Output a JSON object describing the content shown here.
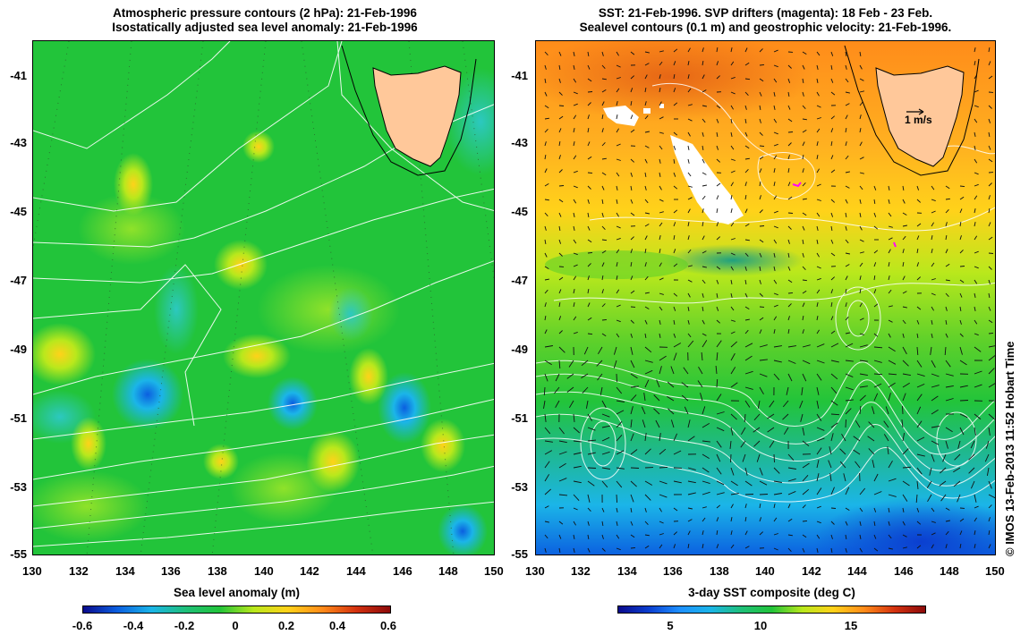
{
  "left": {
    "title_line1": "Atmospheric pressure contours (2 hPa): 21-Feb-1996",
    "title_line2": "Isostatically adjusted sea level anomaly: 21-Feb-1996",
    "colorbar": {
      "label": "Sea level anomaly (m)",
      "ticks": [
        "-0.6",
        "-0.4",
        "-0.2",
        "0",
        "0.2",
        "0.4",
        "0.6"
      ],
      "colors": [
        "#0a0a8c",
        "#0b5fe0",
        "#1bb5e8",
        "#1fc07a",
        "#22c43a",
        "#b9e81c",
        "#ffd21a",
        "#ff8c1a",
        "#d4320f",
        "#8c0a0a"
      ]
    }
  },
  "right": {
    "title_line1": "SST: 21-Feb-1996. SVP drifters (magenta): 18 Feb - 23 Feb.",
    "title_line2": "Sealevel contours (0.1 m) and geostrophic velocity: 21-Feb-1996.",
    "velocity_label": "1 m/s",
    "colorbar": {
      "label": "3-day SST composite (deg C)",
      "ticks": [
        "5",
        "10",
        "15"
      ],
      "colors": [
        "#0a0a8c",
        "#0b3fd0",
        "#1e90ff",
        "#1bb5e8",
        "#1fc07a",
        "#22c43a",
        "#b9e81c",
        "#ffd21a",
        "#ff8c1a",
        "#d4320f",
        "#8c0a0a"
      ]
    }
  },
  "axes": {
    "lat_ticks": [
      "-41",
      "-43",
      "-45",
      "-47",
      "-49",
      "-51",
      "-53",
      "-55"
    ],
    "lon_ticks": [
      "130",
      "132",
      "134",
      "136",
      "138",
      "140",
      "142",
      "144",
      "146",
      "148",
      "150"
    ]
  },
  "land_color": "#ffc89a",
  "stamp": "© IMOS 13-Feb-2013 11:52 Hobart Time"
}
